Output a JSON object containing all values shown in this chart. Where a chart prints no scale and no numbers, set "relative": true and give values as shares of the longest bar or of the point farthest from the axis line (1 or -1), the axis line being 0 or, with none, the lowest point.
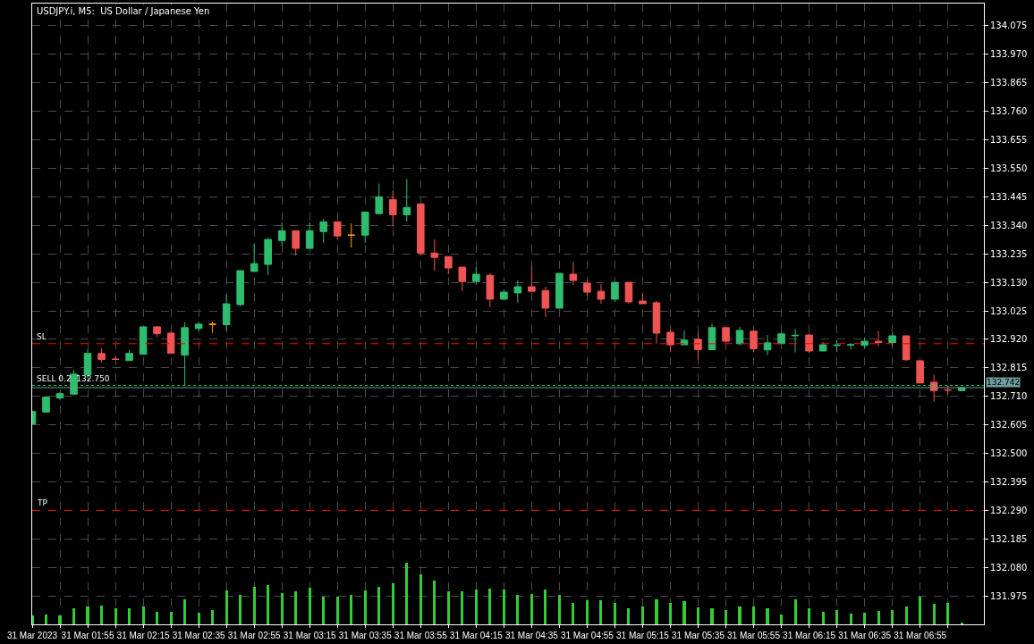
{
  "chart_data": [
    {
      "type": "candlestick",
      "title": "USDJPY.i, M5:  US Dollar / Japanese Yen",
      "x": [
        "2023-03-31T01:35",
        "2023-03-31T01:40",
        "2023-03-31T01:45",
        "2023-03-31T01:50",
        "2023-03-31T01:55",
        "2023-03-31T02:00",
        "2023-03-31T02:05",
        "2023-03-31T02:10",
        "2023-03-31T02:15",
        "2023-03-31T02:20",
        "2023-03-31T02:25",
        "2023-03-31T02:30",
        "2023-03-31T02:35",
        "2023-03-31T02:40",
        "2023-03-31T02:45",
        "2023-03-31T02:50",
        "2023-03-31T02:55",
        "2023-03-31T03:00",
        "2023-03-31T03:05",
        "2023-03-31T03:10",
        "2023-03-31T03:15",
        "2023-03-31T03:20",
        "2023-03-31T03:25",
        "2023-03-31T03:30",
        "2023-03-31T03:35",
        "2023-03-31T03:40",
        "2023-03-31T03:45",
        "2023-03-31T03:50",
        "2023-03-31T03:55",
        "2023-03-31T04:00",
        "2023-03-31T04:05",
        "2023-03-31T04:10",
        "2023-03-31T04:15",
        "2023-03-31T04:20",
        "2023-03-31T04:25",
        "2023-03-31T04:30",
        "2023-03-31T04:35",
        "2023-03-31T04:40",
        "2023-03-31T04:45",
        "2023-03-31T04:50",
        "2023-03-31T04:55",
        "2023-03-31T05:00",
        "2023-03-31T05:05",
        "2023-03-31T05:10",
        "2023-03-31T05:15",
        "2023-03-31T05:20",
        "2023-03-31T05:25",
        "2023-03-31T05:30",
        "2023-03-31T05:35",
        "2023-03-31T05:40",
        "2023-03-31T05:45",
        "2023-03-31T05:50",
        "2023-03-31T05:55",
        "2023-03-31T06:00",
        "2023-03-31T06:05",
        "2023-03-31T06:10",
        "2023-03-31T06:15",
        "2023-03-31T06:20",
        "2023-03-31T06:25",
        "2023-03-31T06:30",
        "2023-03-31T06:35",
        "2023-03-31T06:40",
        "2023-03-31T06:45",
        "2023-03-31T06:50",
        "2023-03-31T06:55",
        "2023-03-31T07:00",
        "2023-03-31T07:05",
        "2023-03-31T07:10"
      ],
      "ohlc": [
        [
          132.608,
          132.658,
          132.605,
          132.654
        ],
        [
          132.652,
          132.712,
          132.651,
          132.707
        ],
        [
          132.704,
          132.725,
          132.696,
          132.72
        ],
        [
          132.718,
          132.808,
          132.714,
          132.792
        ],
        [
          132.789,
          132.884,
          132.778,
          132.868
        ],
        [
          132.868,
          132.887,
          132.835,
          132.846
        ],
        [
          132.847,
          132.86,
          132.844,
          132.846
        ],
        [
          132.842,
          132.881,
          132.842,
          132.868
        ],
        [
          132.865,
          132.966,
          132.865,
          132.966
        ],
        [
          132.966,
          132.968,
          132.928,
          132.941
        ],
        [
          132.943,
          132.947,
          132.869,
          132.869
        ],
        [
          132.862,
          132.982,
          132.748,
          132.963
        ],
        [
          132.96,
          132.985,
          132.952,
          132.976
        ],
        [
          132.975,
          132.985,
          132.944,
          132.976
        ],
        [
          132.974,
          133.084,
          132.951,
          133.051
        ],
        [
          133.048,
          133.173,
          133.042,
          133.173
        ],
        [
          133.17,
          133.274,
          133.17,
          133.199
        ],
        [
          133.196,
          133.294,
          133.157,
          133.288
        ],
        [
          133.284,
          133.351,
          133.265,
          133.32
        ],
        [
          133.32,
          133.32,
          133.229,
          133.255
        ],
        [
          133.255,
          133.351,
          133.255,
          133.32
        ],
        [
          133.317,
          133.363,
          133.275,
          133.353
        ],
        [
          133.353,
          133.353,
          133.287,
          133.301
        ],
        [
          133.304,
          133.347,
          133.258,
          133.304
        ],
        [
          133.304,
          133.389,
          133.275,
          133.389
        ],
        [
          133.383,
          133.494,
          133.383,
          133.445
        ],
        [
          133.435,
          133.469,
          133.336,
          133.379
        ],
        [
          133.379,
          133.511,
          133.354,
          133.406
        ],
        [
          133.419,
          133.419,
          133.228,
          133.238
        ],
        [
          133.238,
          133.288,
          133.173,
          133.222
        ],
        [
          133.225,
          133.225,
          133.16,
          133.183
        ],
        [
          133.186,
          133.186,
          133.097,
          133.133
        ],
        [
          133.133,
          133.186,
          133.123,
          133.16
        ],
        [
          133.156,
          133.163,
          133.038,
          133.068
        ],
        [
          133.068,
          133.104,
          133.068,
          133.094
        ],
        [
          133.091,
          133.137,
          133.055,
          133.114
        ],
        [
          133.114,
          133.19,
          133.097,
          133.097
        ],
        [
          133.1,
          133.114,
          133.002,
          133.035
        ],
        [
          133.035,
          133.163,
          133.035,
          133.163
        ],
        [
          133.16,
          133.205,
          133.12,
          133.137
        ],
        [
          133.127,
          133.137,
          133.081,
          133.094
        ],
        [
          133.097,
          133.123,
          133.051,
          133.068
        ],
        [
          133.068,
          133.13,
          133.058,
          133.13
        ],
        [
          133.13,
          133.13,
          133.051,
          133.058
        ],
        [
          133.061,
          133.091,
          133.051,
          133.051
        ],
        [
          133.055,
          133.061,
          132.904,
          132.943
        ],
        [
          132.946,
          132.956,
          132.874,
          132.9
        ],
        [
          132.9,
          132.953,
          132.9,
          132.917
        ],
        [
          132.92,
          132.944,
          132.846,
          132.882
        ],
        [
          132.882,
          132.977,
          132.882,
          132.963
        ],
        [
          132.963,
          132.963,
          132.909,
          132.913
        ],
        [
          132.904,
          132.966,
          132.898,
          132.953
        ],
        [
          132.95,
          132.95,
          132.872,
          132.885
        ],
        [
          132.881,
          132.936,
          132.862,
          132.907
        ],
        [
          132.904,
          132.946,
          132.904,
          132.94
        ],
        [
          132.933,
          132.959,
          132.872,
          132.935
        ],
        [
          132.936,
          132.94,
          132.869,
          132.877
        ],
        [
          132.877,
          132.91,
          132.877,
          132.9
        ],
        [
          132.897,
          132.918,
          132.874,
          132.899
        ],
        [
          132.899,
          132.907,
          132.882,
          132.9
        ],
        [
          132.898,
          132.927,
          132.887,
          132.913
        ],
        [
          132.913,
          132.951,
          132.894,
          132.908
        ],
        [
          132.908,
          132.946,
          132.894,
          132.933
        ],
        [
          132.933,
          132.933,
          132.841,
          132.845
        ],
        [
          132.841,
          132.841,
          132.759,
          132.759
        ],
        [
          132.762,
          132.789,
          132.69,
          132.731
        ],
        [
          132.734,
          132.749,
          132.718,
          132.733
        ],
        [
          132.731,
          132.742,
          132.731,
          132.742
        ]
      ],
      "colors": [
        "#2ebd6f",
        "#2ebd6f",
        "#2ebd6f",
        "#2ebd6f",
        "#2ebd6f",
        "#ef5454",
        "#ef5454",
        "#2ebd6f",
        "#2ebd6f",
        "#ef5454",
        "#ef5454",
        "#2ebd6f",
        "#2ebd6f",
        "#ffa500",
        "#2ebd6f",
        "#2ebd6f",
        "#2ebd6f",
        "#2ebd6f",
        "#2ebd6f",
        "#ef5454",
        "#2ebd6f",
        "#2ebd6f",
        "#ef5454",
        "#ffa500",
        "#2ebd6f",
        "#2ebd6f",
        "#ef5454",
        "#2ebd6f",
        "#ef5454",
        "#ef5454",
        "#ef5454",
        "#ef5454",
        "#2ebd6f",
        "#ef5454",
        "#2ebd6f",
        "#2ebd6f",
        "#ef5454",
        "#ef5454",
        "#2ebd6f",
        "#ef5454",
        "#ef5454",
        "#ef5454",
        "#2ebd6f",
        "#ef5454",
        "#ef5454",
        "#ef5454",
        "#ef5454",
        "#2ebd6f",
        "#ef5454",
        "#2ebd6f",
        "#ef5454",
        "#2ebd6f",
        "#ef5454",
        "#2ebd6f",
        "#2ebd6f",
        "#2ebd6f",
        "#ef5454",
        "#2ebd6f",
        "#2ebd6f",
        "#2ebd6f",
        "#2ebd6f",
        "#ef5454",
        "#2ebd6f",
        "#ef5454",
        "#ef5454",
        "#ef5454",
        "#ef5454",
        "#2ebd6f"
      ],
      "xlim": [
        "2023-03-31T01:35",
        "2023-03-31T07:18"
      ],
      "xticks": [
        {
          "value": "2023-03-31T01:35",
          "label": "31 Mar 2023"
        },
        {
          "value": "2023-03-31T01:45",
          "label": null
        },
        {
          "value": "2023-03-31T01:55",
          "label": "31 Mar 01:55"
        },
        {
          "value": "2023-03-31T02:05",
          "label": null
        },
        {
          "value": "2023-03-31T02:15",
          "label": "31 Mar 02:15"
        },
        {
          "value": "2023-03-31T02:25",
          "label": null
        },
        {
          "value": "2023-03-31T02:35",
          "label": "31 Mar 02:35"
        },
        {
          "value": "2023-03-31T02:45",
          "label": null
        },
        {
          "value": "2023-03-31T02:55",
          "label": "31 Mar 02:55"
        },
        {
          "value": "2023-03-31T03:05",
          "label": null
        },
        {
          "value": "2023-03-31T03:15",
          "label": "31 Mar 03:15"
        },
        {
          "value": "2023-03-31T03:25",
          "label": null
        },
        {
          "value": "2023-03-31T03:35",
          "label": "31 Mar 03:35"
        },
        {
          "value": "2023-03-31T03:45",
          "label": null
        },
        {
          "value": "2023-03-31T03:55",
          "label": "31 Mar 03:55"
        },
        {
          "value": "2023-03-31T04:05",
          "label": null
        },
        {
          "value": "2023-03-31T04:15",
          "label": "31 Mar 04:15"
        },
        {
          "value": "2023-03-31T04:25",
          "label": null
        },
        {
          "value": "2023-03-31T04:35",
          "label": "31 Mar 04:35"
        },
        {
          "value": "2023-03-31T04:45",
          "label": null
        },
        {
          "value": "2023-03-31T04:55",
          "label": "31 Mar 04:55"
        },
        {
          "value": "2023-03-31T05:05",
          "label": null
        },
        {
          "value": "2023-03-31T05:15",
          "label": "31 Mar 05:15"
        },
        {
          "value": "2023-03-31T05:25",
          "label": null
        },
        {
          "value": "2023-03-31T05:35",
          "label": "31 Mar 05:35"
        },
        {
          "value": "2023-03-31T05:45",
          "label": null
        },
        {
          "value": "2023-03-31T05:55",
          "label": "31 Mar 05:55"
        },
        {
          "value": "2023-03-31T06:05",
          "label": null
        },
        {
          "value": "2023-03-31T06:15",
          "label": "31 Mar 06:15"
        },
        {
          "value": "2023-03-31T06:25",
          "label": null
        },
        {
          "value": "2023-03-31T06:35",
          "label": "31 Mar 06:35"
        },
        {
          "value": "2023-03-31T06:45",
          "label": null
        },
        {
          "value": "2023-03-31T06:55",
          "label": "31 Mar 06:55"
        },
        {
          "value": "2023-03-31T07:05",
          "label": null
        }
      ],
      "ylim": [
        131.87,
        134.157
      ],
      "yticks": [
        131.975,
        {
          "value": 132.08,
          "label": "132.080"
        },
        132.185,
        {
          "value": 132.29,
          "label": "132.290"
        },
        132.395,
        {
          "value": 132.5,
          "label": "132.500"
        },
        132.605,
        {
          "value": 132.71,
          "label": "132.710"
        },
        132.815,
        {
          "value": 132.92,
          "label": "132.920"
        },
        133.025,
        {
          "value": 133.13,
          "label": "133.130"
        },
        133.235,
        {
          "value": 133.34,
          "label": "133.340"
        },
        133.445,
        {
          "value": 133.55,
          "label": "133.550"
        },
        133.655,
        {
          "value": 133.76,
          "label": "133.760"
        },
        133.865,
        {
          "value": 133.97,
          "label": "133.970"
        },
        134.075
      ],
      "grid": true,
      "ref_lines": [
        {
          "axis": "y",
          "value": 132.904,
          "label": "SL",
          "color": "#ff0000",
          "line_style": "dashed"
        },
        {
          "axis": "y",
          "value": 132.29,
          "label": "TP",
          "color": "#ff0000",
          "line_style": "dashed"
        },
        {
          "axis": "y",
          "value": 132.75,
          "label": "SELL 0.2  132.750",
          "color": "#32cd32",
          "line_style": "dotted"
        },
        {
          "axis": "y",
          "value": 132.742,
          "label": "132.742",
          "color": "#6f9c9e",
          "line_style": "solid"
        }
      ]
    },
    {
      "type": "bar",
      "relative": true,
      "color": "#32cd32",
      "x": [
        "2023-03-31T01:35",
        "2023-03-31T01:40",
        "2023-03-31T01:45",
        "2023-03-31T01:50",
        "2023-03-31T01:55",
        "2023-03-31T02:00",
        "2023-03-31T02:05",
        "2023-03-31T02:10",
        "2023-03-31T02:15",
        "2023-03-31T02:20",
        "2023-03-31T02:25",
        "2023-03-31T02:30",
        "2023-03-31T02:35",
        "2023-03-31T02:40",
        "2023-03-31T02:45",
        "2023-03-31T02:50",
        "2023-03-31T02:55",
        "2023-03-31T03:00",
        "2023-03-31T03:05",
        "2023-03-31T03:10",
        "2023-03-31T03:15",
        "2023-03-31T03:20",
        "2023-03-31T03:25",
        "2023-03-31T03:30",
        "2023-03-31T03:35",
        "2023-03-31T03:40",
        "2023-03-31T03:45",
        "2023-03-31T03:50",
        "2023-03-31T03:55",
        "2023-03-31T04:00",
        "2023-03-31T04:05",
        "2023-03-31T04:10",
        "2023-03-31T04:15",
        "2023-03-31T04:20",
        "2023-03-31T04:25",
        "2023-03-31T04:30",
        "2023-03-31T04:35",
        "2023-03-31T04:40",
        "2023-03-31T04:45",
        "2023-03-31T04:50",
        "2023-03-31T04:55",
        "2023-03-31T05:00",
        "2023-03-31T05:05",
        "2023-03-31T05:10",
        "2023-03-31T05:15",
        "2023-03-31T05:20",
        "2023-03-31T05:25",
        "2023-03-31T05:30",
        "2023-03-31T05:35",
        "2023-03-31T05:40",
        "2023-03-31T05:45",
        "2023-03-31T05:50",
        "2023-03-31T05:55",
        "2023-03-31T06:00",
        "2023-03-31T06:05",
        "2023-03-31T06:10",
        "2023-03-31T06:15",
        "2023-03-31T06:20",
        "2023-03-31T06:25",
        "2023-03-31T06:30",
        "2023-03-31T06:35",
        "2023-03-31T06:40",
        "2023-03-31T06:45",
        "2023-03-31T06:50",
        "2023-03-31T06:55",
        "2023-03-31T07:00",
        "2023-03-31T07:05",
        "2023-03-31T07:10"
      ],
      "xlim": [
        "2023-03-31T01:35",
        "2023-03-31T07:18"
      ],
      "values": [
        0.14,
        0.16,
        0.14,
        0.26,
        0.29,
        0.3,
        0.26,
        0.26,
        0.29,
        0.2,
        0.2,
        0.41,
        0.19,
        0.23,
        0.54,
        0.47,
        0.6,
        0.63,
        0.51,
        0.53,
        0.59,
        0.44,
        0.44,
        0.47,
        0.54,
        0.61,
        0.66,
        1,
        0.81,
        0.7,
        0.53,
        0.53,
        0.56,
        0.57,
        0.56,
        0.47,
        0.49,
        0.56,
        0.47,
        0.34,
        0.39,
        0.39,
        0.34,
        0.26,
        0.29,
        0.41,
        0.34,
        0.37,
        0.27,
        0.26,
        0.23,
        0.29,
        0.29,
        0.26,
        0.16,
        0.41,
        0.26,
        0.2,
        0.23,
        0.17,
        0.19,
        0.21,
        0.23,
        0.29,
        0.44,
        0.33,
        0.34,
        0.03
      ]
    }
  ]
}
